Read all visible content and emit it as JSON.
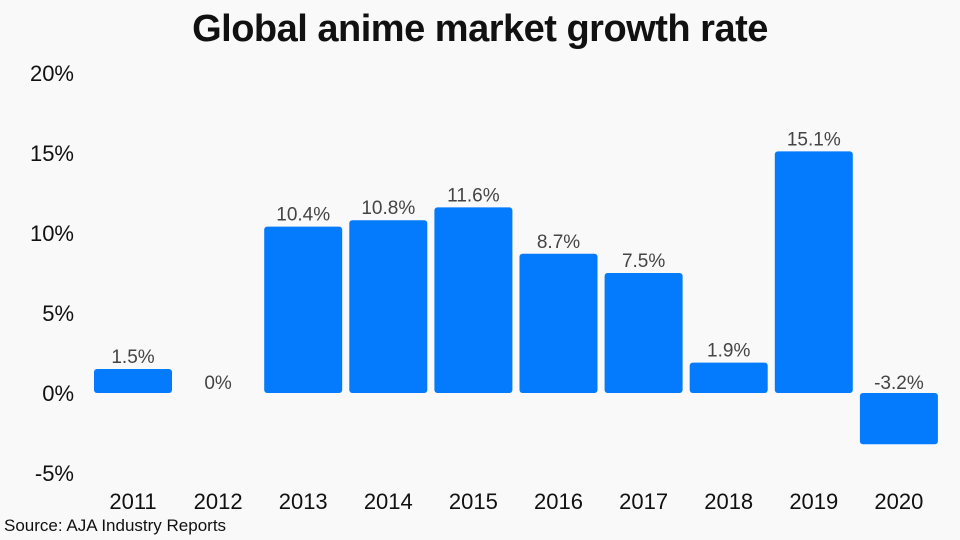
{
  "title": "Global anime market growth rate",
  "source": "Source: AJA Industry Reports",
  "colors": {
    "bar": "#037bfc",
    "background": "#f9f9f9"
  },
  "chart_data": {
    "type": "bar",
    "title": "Global anime market growth rate",
    "categories": [
      "2011",
      "2012",
      "2013",
      "2014",
      "2015",
      "2016",
      "2017",
      "2018",
      "2019",
      "2020"
    ],
    "values": [
      1.5,
      0,
      10.4,
      10.8,
      11.6,
      8.7,
      7.5,
      1.9,
      15.1,
      -3.2
    ],
    "value_labels": [
      "1.5%",
      "0%",
      "10.4%",
      "10.8%",
      "11.6%",
      "8.7%",
      "7.5%",
      "1.9%",
      "15.1%",
      "-3.2%"
    ],
    "yticks": [
      -5,
      0,
      5,
      10,
      15,
      20
    ],
    "ytick_labels": [
      "-5%",
      "0%",
      "5%",
      "10%",
      "15%",
      "20%"
    ],
    "ylim": [
      -5,
      20
    ],
    "xlabel": "",
    "ylabel": "",
    "grid": false
  }
}
